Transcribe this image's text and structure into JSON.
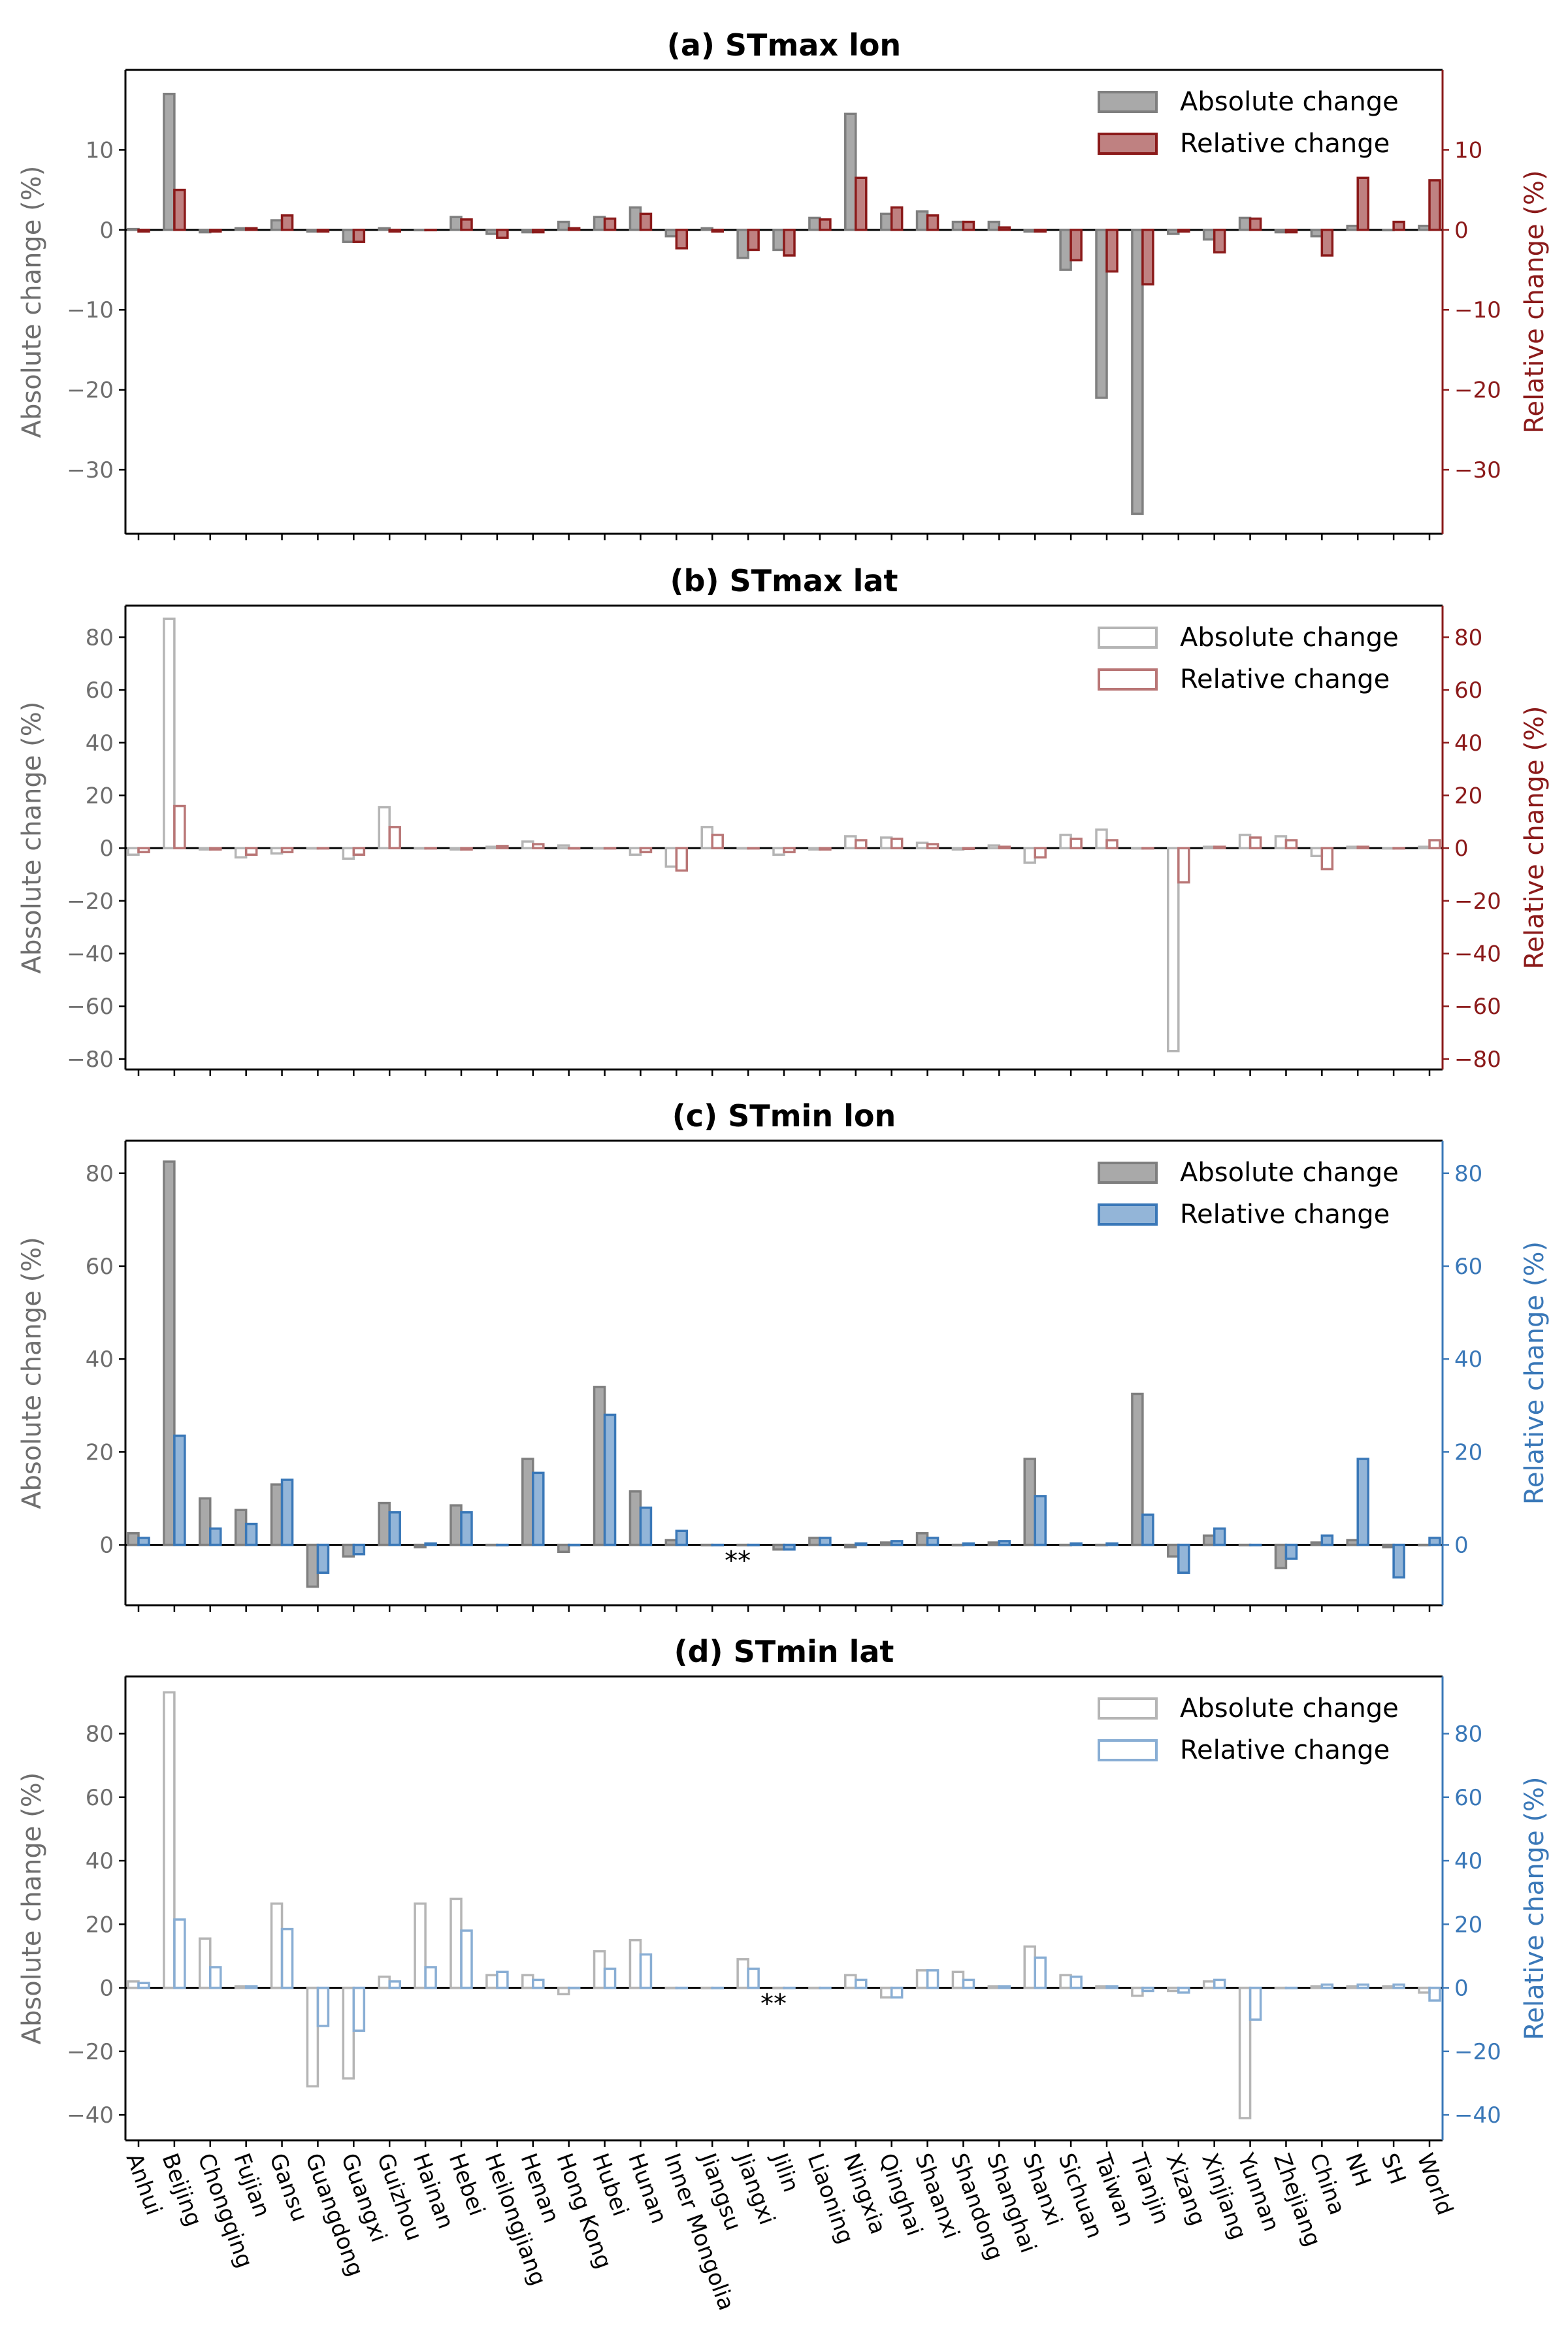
{
  "chart_data": {
    "type": "bar",
    "categories": [
      "Anhui",
      "Beijing",
      "Chongqing",
      "Fujian",
      "Gansu",
      "Guangdong",
      "Guangxi",
      "Guizhou",
      "Hainan",
      "Hebei",
      "Heilongjiang",
      "Henan",
      "Hong Kong",
      "Hubei",
      "Hunan",
      "Inner Mongolia",
      "Jiangsu",
      "Jiangxi",
      "Jilin",
      "Liaoning",
      "Ningxia",
      "Qinghai",
      "Shaanxi",
      "Shandong",
      "Shanghai",
      "Shanxi",
      "Sichuan",
      "Taiwan",
      "Tianjin",
      "Xizang",
      "Xinjiang",
      "Yunnan",
      "Zhejiang",
      "China",
      "NH",
      "SH",
      "World"
    ],
    "panels": [
      {
        "title": "(a) STmax lon",
        "ylabel_left": "Absolute change (%)",
        "ylabel_right": "Relative change (%)",
        "ylim": [
          -38,
          20
        ],
        "yticks": [
          -30,
          -20,
          -10,
          0,
          10
        ],
        "filled": true,
        "rel_color": "#8b1a1a",
        "legend_position": "upper-right",
        "series": [
          {
            "name": "Absolute change",
            "values": [
              0.1,
              17,
              -0.3,
              0.2,
              1.2,
              -0.2,
              -1.5,
              0.2,
              0,
              1.6,
              -0.5,
              -0.3,
              1.0,
              1.6,
              2.8,
              -0.8,
              0.2,
              -3.5,
              -2.5,
              1.5,
              14.5,
              2.0,
              2.3,
              1.0,
              1.0,
              -0.2,
              -5.0,
              -21,
              -35.5,
              -0.5,
              -1.2,
              1.5,
              -0.3,
              -0.8,
              0.5,
              0,
              0.5
            ]
          },
          {
            "name": "Relative change",
            "values": [
              -0.2,
              5.0,
              -0.2,
              0.2,
              1.8,
              -0.2,
              -1.5,
              -0.2,
              0,
              1.3,
              -1.0,
              -0.3,
              0.2,
              1.4,
              2.0,
              -2.3,
              -0.2,
              -2.5,
              -3.2,
              1.3,
              6.5,
              2.8,
              1.8,
              1.0,
              0.3,
              -0.2,
              -3.8,
              -5.2,
              -6.8,
              -0.2,
              -2.8,
              1.4,
              -0.3,
              -3.2,
              6.5,
              1.0,
              6.2
            ]
          }
        ]
      },
      {
        "title": "(b) STmax lat",
        "ylabel_left": "Absolute change (%)",
        "ylabel_right": "Relative change (%)",
        "ylim": [
          -84,
          92
        ],
        "yticks": [
          -80,
          -60,
          -40,
          -20,
          0,
          20,
          40,
          60,
          80
        ],
        "filled": false,
        "rel_color": "#8b1a1a",
        "legend_position": "upper-right",
        "series": [
          {
            "name": "Absolute change",
            "values": [
              -2.5,
              87,
              -0.5,
              -3.5,
              -2,
              0,
              -4,
              15.5,
              0,
              -0.5,
              0.5,
              2.5,
              1.0,
              0,
              -2.5,
              -7,
              8,
              0,
              -2.5,
              -0.5,
              4.5,
              4.0,
              2.0,
              -0.5,
              1.0,
              -5.5,
              5.0,
              7,
              0,
              -77,
              0.5,
              5,
              4.5,
              -3,
              0.5,
              0,
              0.5
            ]
          },
          {
            "name": "Relative change",
            "values": [
              -1.5,
              16,
              -0.5,
              -2.5,
              -1.5,
              0,
              -2.5,
              8,
              0,
              -0.5,
              0.8,
              1.5,
              0,
              0,
              -1.5,
              -8.5,
              5,
              0,
              -1.5,
              -0.5,
              3,
              3.5,
              1.5,
              -0.3,
              0.5,
              -3.5,
              3.5,
              3,
              0,
              -13,
              0.5,
              4,
              3,
              -8,
              0.5,
              0,
              3
            ]
          }
        ]
      },
      {
        "title": "(c) STmin lon",
        "ylabel_left": "Absolute change (%)",
        "ylabel_right": "Relative change (%)",
        "ylim": [
          -13,
          87
        ],
        "yticks": [
          0,
          20,
          40,
          60,
          80
        ],
        "filled": true,
        "rel_color": "#3a78b8",
        "legend_position": "upper-right",
        "annotation": {
          "text": "**",
          "category": "Jiangxi"
        },
        "series": [
          {
            "name": "Absolute change",
            "values": [
              2.5,
              82.5,
              10,
              7.5,
              13,
              -9,
              -2.5,
              9,
              -0.5,
              8.5,
              0,
              18.5,
              -1.5,
              34,
              11.5,
              1,
              0,
              0,
              -1,
              1.5,
              -0.5,
              0.5,
              2.5,
              0,
              0.5,
              18.5,
              0,
              0,
              32.5,
              -2.5,
              2,
              0,
              -5,
              0.5,
              1,
              -0.5,
              0
            ]
          },
          {
            "name": "Relative change",
            "values": [
              1.5,
              23.5,
              3.5,
              4.5,
              14,
              -6,
              -2,
              7,
              0.3,
              7,
              0,
              15.5,
              0,
              28,
              8,
              3,
              0,
              0,
              -1,
              1.5,
              0.3,
              0.8,
              1.5,
              0.3,
              0.8,
              10.5,
              0.3,
              0.3,
              6.5,
              -6,
              3.5,
              0,
              -3,
              2,
              18.5,
              -7,
              1.5
            ]
          }
        ]
      },
      {
        "title": "(d) STmin lat",
        "ylabel_left": "Absolute change (%)",
        "ylabel_right": "Relative change (%)",
        "ylim": [
          -48,
          98
        ],
        "yticks": [
          -40,
          -20,
          0,
          20,
          40,
          60,
          80
        ],
        "filled": false,
        "rel_color": "#3a78b8",
        "legend_position": "upper-right",
        "annotation": {
          "text": "**",
          "category": "Jilin"
        },
        "series": [
          {
            "name": "Absolute change",
            "values": [
              2,
              93,
              15.5,
              0.5,
              26.5,
              -31,
              -28.5,
              3.5,
              26.5,
              28,
              4,
              4,
              -2,
              11.5,
              15,
              0,
              0,
              9,
              0,
              0,
              4,
              -3,
              5.5,
              5,
              0.5,
              13,
              4,
              0.5,
              -2.5,
              -1,
              2,
              -41,
              0,
              0.5,
              0.5,
              0.5,
              -1.5
            ]
          },
          {
            "name": "Relative change",
            "values": [
              1.5,
              21.5,
              6.5,
              0.5,
              18.5,
              -12,
              -13.5,
              2,
              6.5,
              18,
              5,
              2.5,
              0,
              6,
              10.5,
              0,
              0,
              6,
              0,
              0,
              2.5,
              -3,
              5.5,
              2.5,
              0.5,
              9.5,
              3.5,
              0.5,
              -1,
              -1.5,
              2.5,
              -10,
              0,
              1,
              1,
              1,
              -4
            ]
          }
        ]
      }
    ]
  }
}
